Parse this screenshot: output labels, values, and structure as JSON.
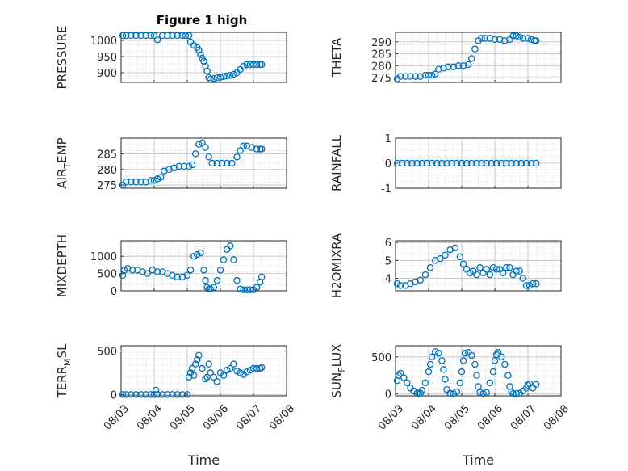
{
  "figure": {
    "title": "Figure 1 high"
  },
  "chart_data": [
    {
      "type": "scatter",
      "key": "pressure",
      "title": "Figure 1 high",
      "ylabel": "PRESSURE",
      "ylabel_sub": "",
      "xlabel": "",
      "xlim": [
        0,
        5
      ],
      "ylim": [
        870,
        1025
      ],
      "yticks": [
        900,
        950,
        1000
      ],
      "ytick_labels": [
        "900",
        "950",
        "1000"
      ],
      "xticks": [
        0,
        1,
        2,
        3,
        4,
        5
      ],
      "xtick_labels": [],
      "grid": "on",
      "x": [
        0.05,
        0.15,
        0.3,
        0.45,
        0.6,
        0.75,
        0.9,
        1.0,
        1.1,
        1.25,
        1.4,
        1.55,
        1.7,
        1.85,
        1.95,
        2.05,
        2.1,
        2.2,
        2.3,
        2.35,
        2.4,
        2.45,
        2.5,
        2.55,
        2.6,
        2.65,
        2.7,
        2.8,
        2.9,
        3.0,
        3.1,
        3.2,
        3.3,
        3.4,
        3.5,
        3.6,
        3.7,
        3.8,
        3.9,
        4.0,
        4.1,
        4.2,
        4.25
      ],
      "y": [
        1015,
        1015,
        1015,
        1015,
        1015,
        1015,
        1015,
        1015,
        1002,
        1015,
        1015,
        1015,
        1015,
        1015,
        1015,
        1015,
        995,
        985,
        978,
        970,
        955,
        945,
        935,
        920,
        905,
        885,
        880,
        882,
        884,
        886,
        888,
        890,
        892,
        895,
        900,
        910,
        920,
        925,
        925,
        925,
        925,
        925,
        925
      ]
    },
    {
      "type": "scatter",
      "key": "theta",
      "title": "",
      "ylabel": "THETA",
      "ylabel_sub": "",
      "xlabel": "",
      "xlim": [
        0,
        5
      ],
      "ylim": [
        273,
        294
      ],
      "yticks": [
        275,
        280,
        285,
        290
      ],
      "ytick_labels": [
        "275",
        "280",
        "285",
        "290"
      ],
      "xticks": [
        0,
        1,
        2,
        3,
        4,
        5
      ],
      "xtick_labels": [],
      "grid": "on",
      "x": [
        0.05,
        0.15,
        0.3,
        0.45,
        0.6,
        0.75,
        0.9,
        1.0,
        1.1,
        1.2,
        1.3,
        1.45,
        1.6,
        1.75,
        1.9,
        2.05,
        2.2,
        2.3,
        2.4,
        2.5,
        2.6,
        2.7,
        2.85,
        3.0,
        3.15,
        3.3,
        3.45,
        3.55,
        3.65,
        3.75,
        3.85,
        4.0,
        4.1,
        4.2,
        4.25
      ],
      "y": [
        274.5,
        275.5,
        275.5,
        275.5,
        275.5,
        275.5,
        276,
        276,
        276,
        276.5,
        278.5,
        279,
        279.5,
        279.5,
        280,
        280,
        280.5,
        283,
        287,
        290.5,
        291.5,
        291.5,
        291.5,
        291,
        291,
        290.5,
        291,
        292.5,
        292.5,
        292,
        291.5,
        291.5,
        291,
        290.5,
        290.5
      ]
    },
    {
      "type": "scatter",
      "key": "air_temp",
      "title": "",
      "ylabel": "AIR",
      "ylabel_sub": "T",
      "ylabel_suffix": "EMP",
      "xlabel": "",
      "xlim": [
        0,
        5
      ],
      "ylim": [
        274,
        290
      ],
      "yticks": [
        275,
        280,
        285
      ],
      "ytick_labels": [
        "275",
        "280",
        "285"
      ],
      "xticks": [
        0,
        1,
        2,
        3,
        4,
        5
      ],
      "xtick_labels": [],
      "grid": "on",
      "x": [
        0.05,
        0.15,
        0.3,
        0.45,
        0.6,
        0.75,
        0.9,
        1.0,
        1.1,
        1.2,
        1.3,
        1.45,
        1.6,
        1.75,
        1.9,
        2.05,
        2.15,
        2.25,
        2.35,
        2.45,
        2.55,
        2.65,
        2.75,
        2.9,
        3.05,
        3.2,
        3.35,
        3.5,
        3.6,
        3.7,
        3.8,
        3.95,
        4.1,
        4.2,
        4.25
      ],
      "y": [
        275,
        276,
        276,
        276,
        276,
        276,
        276.5,
        276.5,
        277,
        277.5,
        279.5,
        280,
        280.5,
        281,
        281,
        281,
        281.5,
        285,
        288,
        288.5,
        287,
        284,
        282,
        282,
        282,
        282,
        282,
        284,
        286,
        287.5,
        287.5,
        287,
        286.5,
        286.5,
        286.5
      ]
    },
    {
      "type": "scatter",
      "key": "rainfall",
      "title": "",
      "ylabel": "RAINFALL",
      "ylabel_sub": "",
      "xlabel": "",
      "xlim": [
        0,
        5
      ],
      "ylim": [
        -1,
        1
      ],
      "yticks": [
        -1,
        0,
        1
      ],
      "ytick_labels": [
        "-1",
        "0",
        "1"
      ],
      "xticks": [
        0,
        1,
        2,
        3,
        4,
        5
      ],
      "xtick_labels": [],
      "grid": "on",
      "x": [
        0.05,
        0.2,
        0.35,
        0.5,
        0.65,
        0.8,
        0.95,
        1.1,
        1.25,
        1.4,
        1.55,
        1.7,
        1.85,
        2.0,
        2.15,
        2.3,
        2.45,
        2.6,
        2.75,
        2.9,
        3.05,
        3.2,
        3.35,
        3.5,
        3.65,
        3.8,
        3.95,
        4.1,
        4.25
      ],
      "y": [
        0,
        0,
        0,
        0,
        0,
        0,
        0,
        0,
        0,
        0,
        0,
        0,
        0,
        0,
        0,
        0,
        0,
        0,
        0,
        0,
        0,
        0,
        0,
        0,
        0,
        0,
        0,
        0,
        0
      ]
    },
    {
      "type": "scatter",
      "key": "mixdepth",
      "title": "",
      "ylabel": "MIXDEPTH",
      "ylabel_sub": "",
      "xlabel": "",
      "xlim": [
        0,
        5
      ],
      "ylim": [
        0,
        1450
      ],
      "yticks": [
        0,
        500,
        1000
      ],
      "ytick_labels": [
        "0",
        "500",
        "1000"
      ],
      "xticks": [
        0,
        1,
        2,
        3,
        4,
        5
      ],
      "xtick_labels": [],
      "grid": "on",
      "x": [
        0.05,
        0.1,
        0.2,
        0.35,
        0.5,
        0.65,
        0.8,
        0.95,
        1.1,
        1.25,
        1.4,
        1.55,
        1.7,
        1.85,
        2.0,
        2.1,
        2.2,
        2.3,
        2.4,
        2.5,
        2.55,
        2.6,
        2.65,
        2.7,
        2.8,
        2.9,
        3.0,
        3.1,
        3.2,
        3.3,
        3.4,
        3.5,
        3.6,
        3.7,
        3.8,
        3.9,
        4.0,
        4.1,
        4.2,
        4.25
      ],
      "y": [
        450,
        600,
        650,
        600,
        600,
        550,
        500,
        600,
        550,
        550,
        500,
        450,
        400,
        400,
        450,
        600,
        1000,
        1050,
        1100,
        600,
        300,
        100,
        50,
        50,
        100,
        300,
        600,
        900,
        1200,
        1300,
        900,
        300,
        50,
        30,
        30,
        30,
        30,
        100,
        250,
        400
      ]
    },
    {
      "type": "scatter",
      "key": "h2omixra",
      "title": "",
      "ylabel": "H2OMIXRA",
      "ylabel_sub": "",
      "xlabel": "",
      "xlim": [
        0,
        5
      ],
      "ylim": [
        3.3,
        6.1
      ],
      "yticks": [
        4,
        5,
        6
      ],
      "ytick_labels": [
        "4",
        "5",
        "6"
      ],
      "xticks": [
        0,
        1,
        2,
        3,
        4,
        5
      ],
      "xtick_labels": [],
      "grid": "on",
      "x": [
        0.05,
        0.15,
        0.3,
        0.45,
        0.6,
        0.75,
        0.9,
        1.05,
        1.2,
        1.35,
        1.5,
        1.65,
        1.8,
        1.95,
        2.05,
        2.15,
        2.25,
        2.35,
        2.45,
        2.55,
        2.65,
        2.75,
        2.85,
        2.95,
        3.05,
        3.15,
        3.25,
        3.35,
        3.45,
        3.55,
        3.65,
        3.75,
        3.85,
        3.95,
        4.05,
        4.15,
        4.25
      ],
      "y": [
        3.7,
        3.6,
        3.6,
        3.7,
        3.8,
        3.9,
        4.2,
        4.6,
        5.0,
        5.1,
        5.3,
        5.6,
        5.7,
        5.2,
        4.8,
        4.5,
        4.3,
        4.4,
        4.2,
        4.6,
        4.3,
        4.5,
        4.2,
        4.6,
        4.5,
        4.5,
        4.3,
        4.6,
        4.6,
        4.2,
        4.4,
        4.4,
        4.0,
        3.6,
        3.6,
        3.7,
        3.7
      ]
    },
    {
      "type": "scatter",
      "key": "terr_msl",
      "title": "",
      "ylabel": "TERR",
      "ylabel_sub": "M",
      "ylabel_suffix": "SL",
      "xlabel": "Time",
      "xlim": [
        0,
        5
      ],
      "ylim": [
        -15,
        560
      ],
      "yticks": [
        0,
        500
      ],
      "ytick_labels": [
        "0",
        "500"
      ],
      "xticks": [
        0,
        1,
        2,
        3,
        4,
        5
      ],
      "xtick_labels": [
        "08/03",
        "08/04",
        "08/05",
        "08/06",
        "08/07",
        "08/08"
      ],
      "grid": "on",
      "x": [
        0.05,
        0.15,
        0.3,
        0.45,
        0.6,
        0.75,
        0.9,
        1.0,
        1.05,
        1.1,
        1.25,
        1.4,
        1.55,
        1.7,
        1.85,
        2.0,
        2.05,
        2.1,
        2.15,
        2.2,
        2.25,
        2.3,
        2.35,
        2.45,
        2.55,
        2.6,
        2.65,
        2.7,
        2.8,
        2.9,
        3.0,
        3.1,
        3.2,
        3.3,
        3.4,
        3.5,
        3.6,
        3.7,
        3.8,
        3.9,
        4.0,
        4.1,
        4.2,
        4.25
      ],
      "y": [
        0,
        0,
        0,
        0,
        0,
        0,
        0,
        0,
        50,
        0,
        0,
        0,
        0,
        0,
        0,
        0,
        200,
        250,
        300,
        220,
        350,
        400,
        450,
        300,
        180,
        200,
        350,
        250,
        200,
        150,
        250,
        220,
        280,
        300,
        350,
        270,
        250,
        230,
        260,
        280,
        300,
        300,
        300,
        310
      ]
    },
    {
      "type": "scatter",
      "key": "sun_flux",
      "title": "",
      "ylabel": "SUN",
      "ylabel_sub": "F",
      "ylabel_suffix": "LUX",
      "xlabel": "Time",
      "xlim": [
        0,
        5
      ],
      "ylim": [
        -25,
        650
      ],
      "yticks": [
        0,
        500
      ],
      "ytick_labels": [
        "0",
        "500"
      ],
      "xticks": [
        0,
        1,
        2,
        3,
        4,
        5
      ],
      "xtick_labels": [
        "08/03",
        "08/04",
        "08/05",
        "08/06",
        "08/07",
        "08/08"
      ],
      "grid": "on",
      "x": [
        0.05,
        0.1,
        0.15,
        0.25,
        0.35,
        0.45,
        0.55,
        0.65,
        0.7,
        0.75,
        0.8,
        0.9,
        1.0,
        1.05,
        1.1,
        1.2,
        1.3,
        1.4,
        1.45,
        1.5,
        1.55,
        1.65,
        1.75,
        1.85,
        1.95,
        2.0,
        2.05,
        2.1,
        2.2,
        2.3,
        2.4,
        2.45,
        2.5,
        2.55,
        2.65,
        2.75,
        2.85,
        2.95,
        3.0,
        3.05,
        3.1,
        3.2,
        3.3,
        3.4,
        3.45,
        3.5,
        3.55,
        3.65,
        3.75,
        3.85,
        3.95,
        4.0,
        4.05,
        4.15,
        4.25
      ],
      "y": [
        180,
        250,
        280,
        220,
        150,
        80,
        40,
        10,
        5,
        10,
        50,
        150,
        300,
        400,
        500,
        570,
        550,
        450,
        330,
        200,
        60,
        10,
        5,
        30,
        150,
        300,
        450,
        550,
        560,
        520,
        400,
        250,
        100,
        20,
        5,
        20,
        150,
        300,
        450,
        530,
        560,
        500,
        400,
        250,
        100,
        30,
        5,
        5,
        10,
        40,
        80,
        120,
        140,
        80,
        130
      ]
    }
  ]
}
